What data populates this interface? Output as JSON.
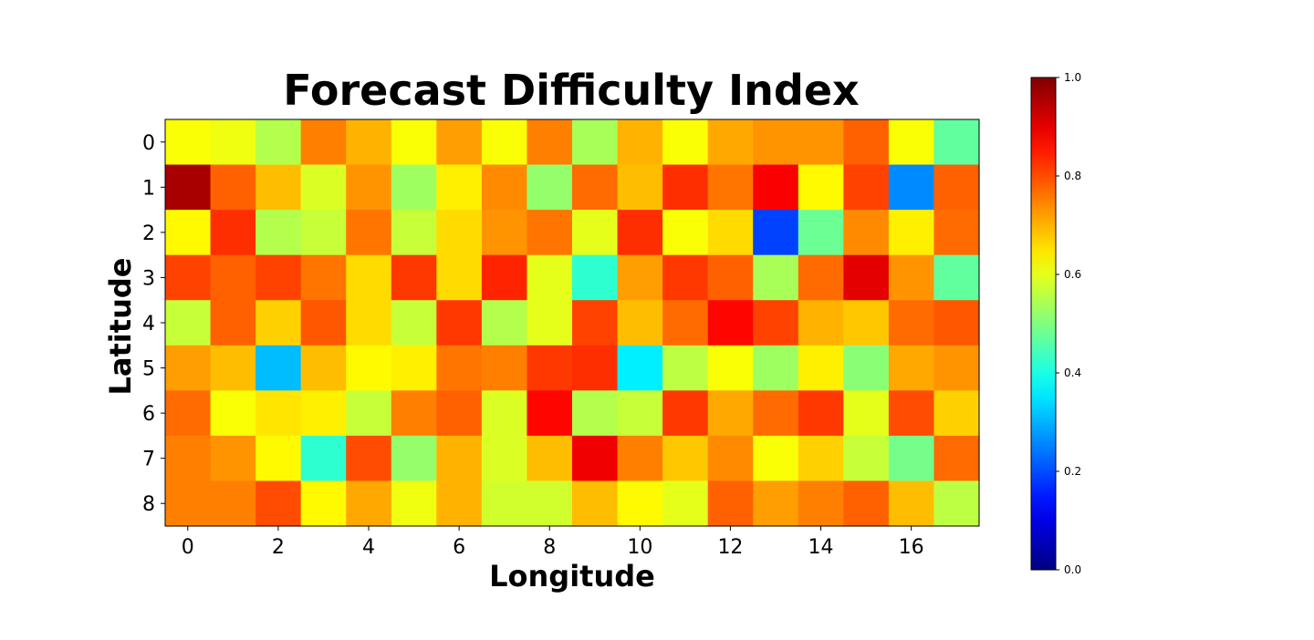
{
  "chart_data": {
    "type": "heatmap",
    "title": "Forecast Difficulty Index",
    "xlabel": "Longitude",
    "ylabel": "Latitude",
    "x_categories": [
      0,
      1,
      2,
      3,
      4,
      5,
      6,
      7,
      8,
      9,
      10,
      11,
      12,
      13,
      14,
      15,
      16,
      17
    ],
    "y_categories": [
      0,
      1,
      2,
      3,
      4,
      5,
      6,
      7,
      8
    ],
    "x_tick_labels": [
      "0",
      "2",
      "4",
      "6",
      "8",
      "10",
      "12",
      "14",
      "16"
    ],
    "y_tick_labels": [
      "0",
      "1",
      "2",
      "3",
      "4",
      "5",
      "6",
      "7",
      "8"
    ],
    "colormap": "jet",
    "color_range": [
      0.0,
      1.0
    ],
    "colorbar": {
      "ticks": [
        0.0,
        0.2,
        0.4,
        0.6,
        0.8,
        1.0
      ],
      "tick_labels": [
        "0.0",
        "0.2",
        "0.4",
        "0.6",
        "0.8",
        "1.0"
      ],
      "placement": "right"
    },
    "grid": false,
    "values": [
      [
        0.62,
        0.61,
        0.55,
        0.75,
        0.7,
        0.62,
        0.72,
        0.62,
        0.75,
        0.54,
        0.7,
        0.62,
        0.71,
        0.73,
        0.73,
        0.78,
        0.62,
        0.47
      ],
      [
        0.96,
        0.78,
        0.69,
        0.59,
        0.73,
        0.53,
        0.64,
        0.74,
        0.52,
        0.77,
        0.69,
        0.83,
        0.76,
        0.88,
        0.63,
        0.81,
        0.26,
        0.78
      ],
      [
        0.63,
        0.83,
        0.55,
        0.57,
        0.76,
        0.57,
        0.66,
        0.73,
        0.76,
        0.6,
        0.83,
        0.62,
        0.66,
        0.19,
        0.48,
        0.74,
        0.64,
        0.77
      ],
      [
        0.81,
        0.78,
        0.81,
        0.76,
        0.66,
        0.82,
        0.66,
        0.84,
        0.6,
        0.42,
        0.72,
        0.82,
        0.78,
        0.54,
        0.77,
        0.9,
        0.73,
        0.47
      ],
      [
        0.57,
        0.78,
        0.67,
        0.79,
        0.66,
        0.57,
        0.82,
        0.55,
        0.6,
        0.81,
        0.69,
        0.77,
        0.87,
        0.81,
        0.7,
        0.68,
        0.77,
        0.79
      ],
      [
        0.72,
        0.69,
        0.31,
        0.69,
        0.63,
        0.64,
        0.76,
        0.75,
        0.82,
        0.83,
        0.36,
        0.56,
        0.62,
        0.53,
        0.64,
        0.51,
        0.71,
        0.73
      ],
      [
        0.77,
        0.62,
        0.65,
        0.64,
        0.57,
        0.75,
        0.78,
        0.59,
        0.87,
        0.55,
        0.57,
        0.82,
        0.71,
        0.77,
        0.82,
        0.6,
        0.8,
        0.67
      ],
      [
        0.75,
        0.73,
        0.63,
        0.42,
        0.8,
        0.52,
        0.7,
        0.59,
        0.69,
        0.89,
        0.75,
        0.68,
        0.74,
        0.62,
        0.67,
        0.57,
        0.49,
        0.77
      ],
      [
        0.75,
        0.75,
        0.8,
        0.63,
        0.71,
        0.61,
        0.7,
        0.58,
        0.58,
        0.69,
        0.63,
        0.6,
        0.78,
        0.72,
        0.75,
        0.78,
        0.69,
        0.56
      ]
    ]
  }
}
